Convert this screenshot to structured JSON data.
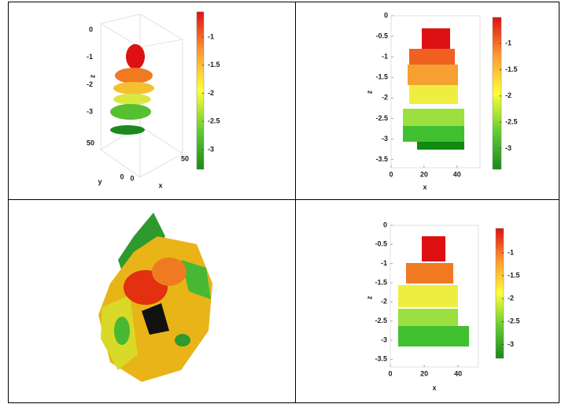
{
  "chart_data": [
    {
      "type": "scatter3d",
      "xlabel": "x",
      "ylabel": "y",
      "zlabel": "z",
      "xticks": [
        0,
        50
      ],
      "yticks": [
        0,
        50
      ],
      "zticks": [
        0,
        -1,
        -2,
        -3
      ],
      "colorbar": {
        "clim": [
          -3.35,
          -0.55
        ],
        "ticks": [
          -1,
          -1.5,
          -2,
          -2.5,
          -3
        ],
        "colors": [
          "#1a8a1a",
          "#66cc33",
          "#ffff33",
          "#ff9933",
          "#dd1111"
        ]
      }
    },
    {
      "type": "scatter",
      "xlabel": "x",
      "ylabel": "z",
      "xlim": [
        0,
        54
      ],
      "ylim": [
        -3.7,
        0
      ],
      "xticks": [
        0,
        20,
        40
      ],
      "yticks": [
        0,
        -0.5,
        -1,
        -1.5,
        -2,
        -2.5,
        -3,
        -3.5
      ],
      "colorbar": {
        "clim": [
          -3.4,
          -0.5
        ],
        "ticks": [
          -1,
          -1.5,
          -2,
          -2.5,
          -3
        ],
        "colors": [
          "#1a8a1a",
          "#66cc33",
          "#ffff33",
          "#ff9933",
          "#dd1111"
        ]
      }
    },
    {
      "type": "scatter",
      "xlabel": "x",
      "ylabel": "z",
      "xlim": [
        0,
        52
      ],
      "ylim": [
        -3.7,
        0
      ],
      "xticks": [
        0,
        20,
        40
      ],
      "yticks": [
        0,
        -0.5,
        -1,
        -1.5,
        -2,
        -2.5,
        -3,
        -3.5
      ],
      "colorbar": {
        "clim": [
          -3.3,
          -0.47
        ],
        "ticks": [
          -1,
          -1.5,
          -2,
          -2.5,
          -3
        ],
        "colors": [
          "#1a8a1a",
          "#66cc33",
          "#ffff33",
          "#ff9933",
          "#dd1111"
        ]
      }
    }
  ]
}
